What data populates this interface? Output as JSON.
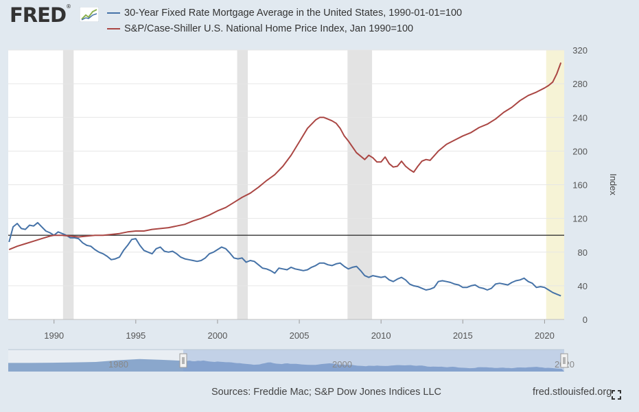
{
  "logo": {
    "text": "FRED",
    "trademark": "®"
  },
  "legend": [
    {
      "label": "30-Year Fixed Rate Mortgage Average in the United States, 1990-01-01=100",
      "color": "#4572a7"
    },
    {
      "label": "S&P/Case-Shiller U.S. National Home Price Index, Jan 1990=100",
      "color": "#aa4643"
    }
  ],
  "footer": {
    "sources": "Sources: Freddie Mac; S&P Dow Jones Indices LLC",
    "site": "fred.stlouisfed.org"
  },
  "navigator": {
    "tick_labels": [
      "1980",
      "2000",
      "2020"
    ]
  },
  "chart_data": {
    "type": "line",
    "ylabel": "Index",
    "xlim": [
      1987.2,
      2021.2
    ],
    "ylim": [
      0,
      320
    ],
    "yticks": [
      0,
      40,
      80,
      120,
      160,
      200,
      240,
      280,
      320
    ],
    "xticks": [
      1990,
      1995,
      2000,
      2005,
      2010,
      2015,
      2020
    ],
    "reference_line": 100,
    "recessions": [
      [
        1990.55,
        1991.2
      ],
      [
        2001.2,
        2001.85
      ],
      [
        2007.95,
        2009.45
      ]
    ],
    "highlight": [
      2020.1,
      2021.2
    ],
    "series": [
      {
        "name": "30-Year Fixed Rate Mortgage Average in the United States, 1990-01-01=100",
        "color": "#4572a7",
        "x": [
          1987.25,
          1987.5,
          1987.75,
          1988.0,
          1988.25,
          1988.5,
          1988.75,
          1989.0,
          1989.25,
          1989.5,
          1989.75,
          1990.0,
          1990.25,
          1990.5,
          1990.75,
          1991.0,
          1991.25,
          1991.5,
          1991.75,
          1992.0,
          1992.25,
          1992.5,
          1992.75,
          1993.0,
          1993.25,
          1993.5,
          1993.75,
          1994.0,
          1994.25,
          1994.5,
          1994.75,
          1995.0,
          1995.25,
          1995.5,
          1995.75,
          1996.0,
          1996.25,
          1996.5,
          1996.75,
          1997.0,
          1997.25,
          1997.5,
          1997.75,
          1998.0,
          1998.25,
          1998.5,
          1998.75,
          1999.0,
          1999.25,
          1999.5,
          1999.75,
          2000.0,
          2000.25,
          2000.5,
          2000.75,
          2001.0,
          2001.25,
          2001.5,
          2001.75,
          2002.0,
          2002.25,
          2002.5,
          2002.75,
          2003.0,
          2003.25,
          2003.5,
          2003.75,
          2004.0,
          2004.25,
          2004.5,
          2004.75,
          2005.0,
          2005.25,
          2005.5,
          2005.75,
          2006.0,
          2006.25,
          2006.5,
          2006.75,
          2007.0,
          2007.25,
          2007.5,
          2007.75,
          2008.0,
          2008.25,
          2008.5,
          2008.75,
          2009.0,
          2009.25,
          2009.5,
          2009.75,
          2010.0,
          2010.25,
          2010.5,
          2010.75,
          2011.0,
          2011.25,
          2011.5,
          2011.75,
          2012.0,
          2012.25,
          2012.5,
          2012.75,
          2013.0,
          2013.25,
          2013.5,
          2013.75,
          2014.0,
          2014.25,
          2014.5,
          2014.75,
          2015.0,
          2015.25,
          2015.5,
          2015.75,
          2016.0,
          2016.25,
          2016.5,
          2016.75,
          2017.0,
          2017.25,
          2017.5,
          2017.75,
          2018.0,
          2018.25,
          2018.5,
          2018.75,
          2019.0,
          2019.25,
          2019.5,
          2019.75,
          2020.0,
          2020.25,
          2020.5,
          2020.75,
          2021.0
        ],
        "values": [
          92,
          110,
          114,
          108,
          107,
          112,
          111,
          115,
          110,
          105,
          103,
          100,
          104,
          102,
          100,
          97,
          97,
          96,
          91,
          88,
          87,
          83,
          80,
          78,
          75,
          71,
          72,
          74,
          82,
          88,
          95,
          96,
          88,
          82,
          80,
          78,
          84,
          86,
          81,
          80,
          81,
          78,
          74,
          72,
          71,
          70,
          69,
          70,
          73,
          78,
          80,
          83,
          86,
          84,
          79,
          73,
          72,
          73,
          68,
          70,
          69,
          65,
          61,
          60,
          58,
          55,
          61,
          60,
          59,
          62,
          60,
          59,
          58,
          59,
          62,
          64,
          67,
          67,
          65,
          64,
          66,
          67,
          63,
          60,
          62,
          63,
          58,
          52,
          50,
          52,
          51,
          50,
          51,
          47,
          45,
          48,
          50,
          47,
          42,
          40,
          39,
          37,
          35,
          36,
          38,
          45,
          46,
          45,
          44,
          42,
          41,
          38,
          38,
          40,
          41,
          38,
          37,
          35,
          37,
          42,
          43,
          42,
          41,
          44,
          46,
          47,
          49,
          45,
          43,
          38,
          39,
          38,
          35,
          32,
          30,
          28
        ]
      },
      {
        "name": "S&P/Case-Shiller U.S. National Home Price Index, Jan 1990=100",
        "color": "#aa4643",
        "x": [
          1987.25,
          1987.75,
          1988.25,
          1988.75,
          1989.25,
          1989.75,
          1990.0,
          1990.5,
          1991.0,
          1991.5,
          1992.0,
          1992.5,
          1993.0,
          1993.5,
          1994.0,
          1994.5,
          1995.0,
          1995.5,
          1996.0,
          1996.5,
          1997.0,
          1997.5,
          1998.0,
          1998.5,
          1999.0,
          1999.5,
          2000.0,
          2000.5,
          2001.0,
          2001.5,
          2002.0,
          2002.5,
          2003.0,
          2003.5,
          2004.0,
          2004.5,
          2005.0,
          2005.5,
          2006.0,
          2006.25,
          2006.5,
          2006.75,
          2007.0,
          2007.25,
          2007.5,
          2007.75,
          2008.0,
          2008.5,
          2009.0,
          2009.25,
          2009.5,
          2009.75,
          2010.0,
          2010.25,
          2010.5,
          2010.75,
          2011.0,
          2011.25,
          2011.5,
          2011.75,
          2012.0,
          2012.25,
          2012.5,
          2012.75,
          2013.0,
          2013.5,
          2014.0,
          2014.5,
          2015.0,
          2015.5,
          2016.0,
          2016.5,
          2017.0,
          2017.5,
          2018.0,
          2018.5,
          2019.0,
          2019.5,
          2020.0,
          2020.25,
          2020.5,
          2020.75,
          2021.0
        ],
        "values": [
          83,
          87,
          90,
          93,
          96,
          99,
          100,
          100,
          99,
          98,
          99,
          100,
          100,
          101,
          102,
          104,
          105,
          105,
          107,
          108,
          109,
          111,
          113,
          117,
          120,
          124,
          129,
          133,
          139,
          145,
          150,
          157,
          165,
          172,
          182,
          195,
          211,
          227,
          237,
          240,
          240,
          238,
          236,
          233,
          227,
          218,
          212,
          198,
          190,
          195,
          192,
          187,
          187,
          193,
          185,
          181,
          182,
          188,
          182,
          178,
          175,
          182,
          188,
          190,
          189,
          200,
          208,
          213,
          218,
          222,
          228,
          232,
          238,
          246,
          252,
          260,
          266,
          270,
          275,
          278,
          282,
          292,
          305
        ]
      }
    ]
  }
}
